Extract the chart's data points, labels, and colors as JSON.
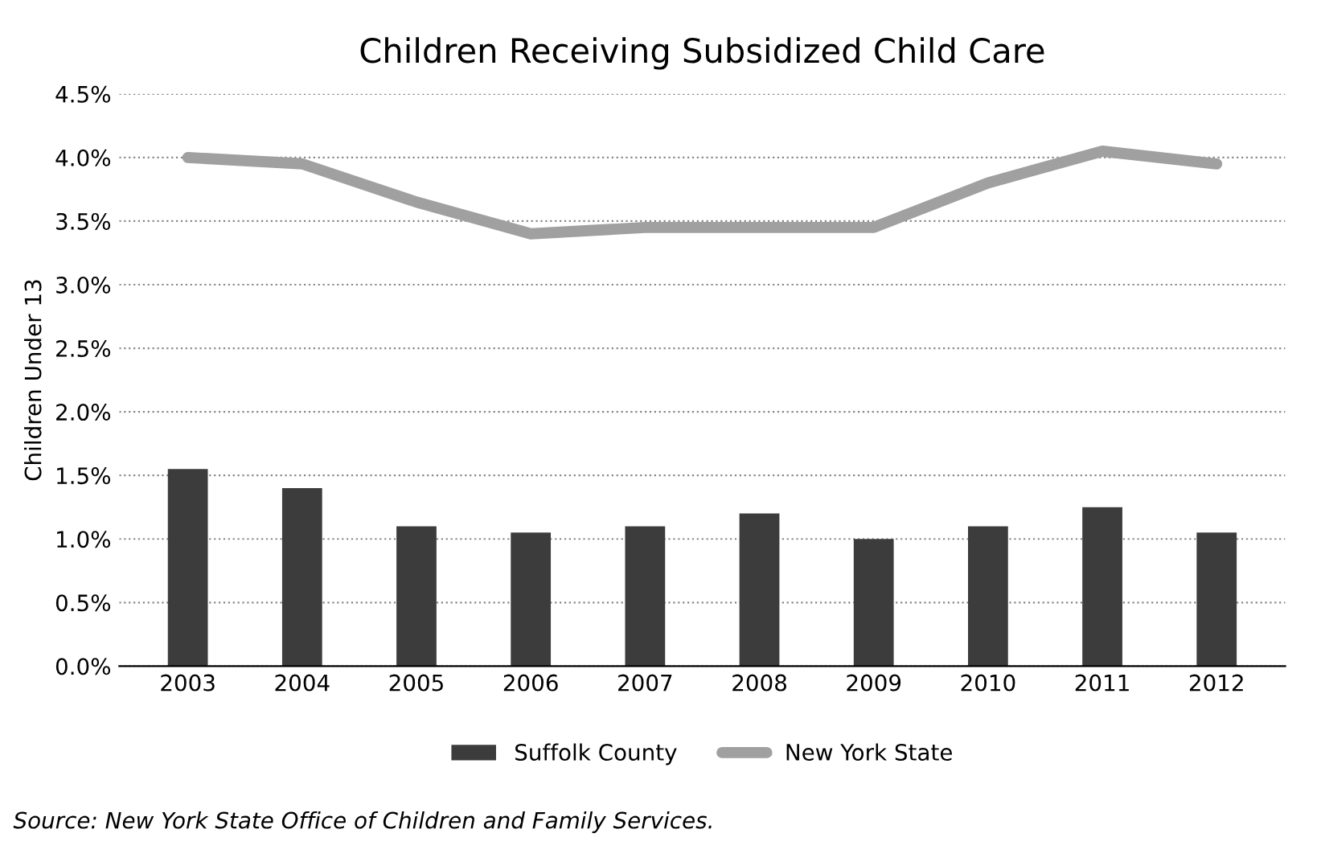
{
  "chart_data": {
    "type": "bar",
    "title": "Children Receiving Subsidized Child Care",
    "ylabel": "Children Under 13",
    "categories": [
      "2003",
      "2004",
      "2005",
      "2006",
      "2007",
      "2008",
      "2009",
      "2010",
      "2011",
      "2012"
    ],
    "series": [
      {
        "name": "Suffolk County",
        "color": "#3c3c3c",
        "values": [
          1.55,
          1.4,
          1.1,
          1.05,
          1.1,
          1.2,
          1.0,
          1.1,
          1.25,
          1.05
        ]
      },
      {
        "name": "New York State",
        "type": "line",
        "color": "#a0a0a0",
        "values": [
          4.0,
          3.95,
          3.65,
          3.4,
          3.45,
          3.45,
          3.45,
          3.8,
          4.05,
          3.95
        ]
      }
    ],
    "ylim": [
      0,
      4.5
    ],
    "yticks": [
      {
        "value": 0,
        "label": "0.0%"
      },
      {
        "value": 0.5,
        "label": "0.5%"
      },
      {
        "value": 1,
        "label": "1.0%"
      },
      {
        "value": 1.5,
        "label": "1.5%"
      },
      {
        "value": 2,
        "label": "2.0%"
      },
      {
        "value": 2.5,
        "label": "2.5%"
      },
      {
        "value": 3,
        "label": "3.0%"
      },
      {
        "value": 3.5,
        "label": "3.5%"
      },
      {
        "value": 4,
        "label": "4.0%"
      },
      {
        "value": 4.5,
        "label": "4.5%"
      }
    ],
    "grid": "y",
    "legend": "bottom",
    "marker": "none",
    "line_style": "solid",
    "annotations": [
      "Source: New York State Office of Children and Family Services."
    ]
  }
}
